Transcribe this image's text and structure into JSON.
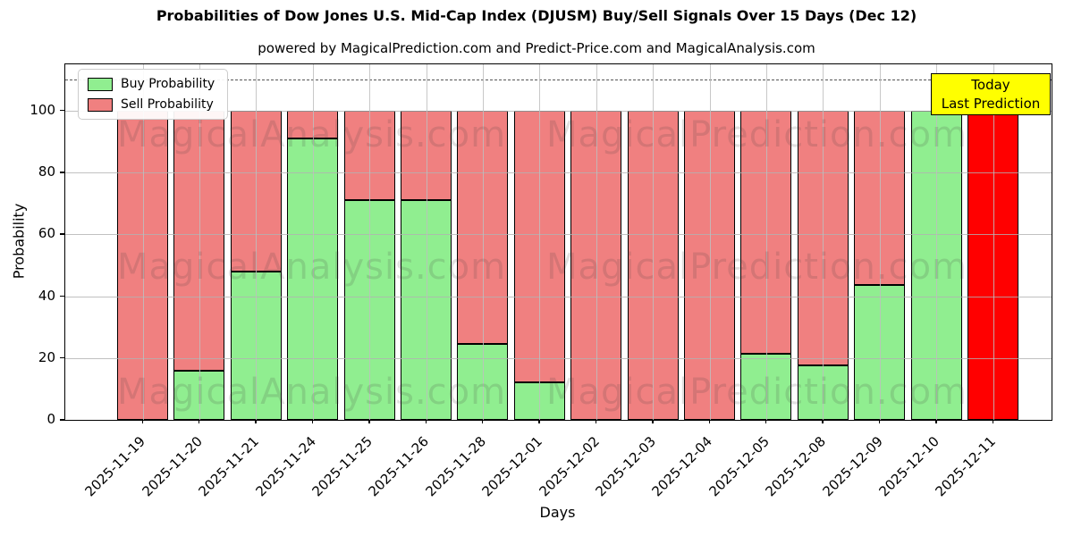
{
  "header": {
    "title": "Probabilities of Dow Jones U.S. Mid-Cap Index (DJUSM) Buy/Sell Signals Over 15 Days (Dec 12)",
    "subtitle": "powered by MagicalPrediction.com and Predict-Price.com and MagicalAnalysis.com"
  },
  "chart_data": {
    "type": "bar",
    "stacked": true,
    "title": "Probabilities of Dow Jones U.S. Mid-Cap Index (DJUSM) Buy/Sell Signals Over 15 Days (Dec 12)",
    "xlabel": "Days",
    "ylabel": "Probability",
    "ylim": [
      0,
      115
    ],
    "yticks": [
      0,
      20,
      40,
      60,
      80,
      100
    ],
    "grid": true,
    "dashed_line_y": 110,
    "categories": [
      "2025-11-19",
      "2025-11-20",
      "2025-11-21",
      "2025-11-24",
      "2025-11-25",
      "2025-11-26",
      "2025-11-28",
      "2025-12-01",
      "2025-12-02",
      "2025-12-03",
      "2025-12-04",
      "2025-12-05",
      "2025-12-08",
      "2025-12-09",
      "2025-12-10",
      "2025-12-11"
    ],
    "series": [
      {
        "name": "Buy Probability",
        "color": "#90ee90",
        "values": [
          0,
          16,
          48,
          91,
          71,
          71,
          24.5,
          12,
          0,
          0,
          0,
          21.5,
          17.5,
          43.5,
          100,
          0
        ]
      },
      {
        "name": "Sell Probability",
        "color": "#f08080",
        "values": [
          100,
          84,
          52,
          9,
          29,
          29,
          75.5,
          88,
          100,
          100,
          100,
          78.5,
          82.5,
          56.5,
          0,
          100
        ]
      }
    ],
    "final_bar": {
      "index": 15,
      "sell_color": "#ff0000"
    },
    "legend": {
      "position": "upper left",
      "entries": [
        "Buy Probability",
        "Sell Probability"
      ]
    },
    "annotation": {
      "line1": "Today",
      "line2": "Last Prediction",
      "bg_color": "#ffff00",
      "target_category": "2025-12-11"
    },
    "bar_edge_color": "#000000",
    "grid_color": "#b0b0b0"
  },
  "watermark": {
    "left": "MagicalAnalysis.com",
    "right": "MagicalPrediction.com",
    "rows": 3
  }
}
